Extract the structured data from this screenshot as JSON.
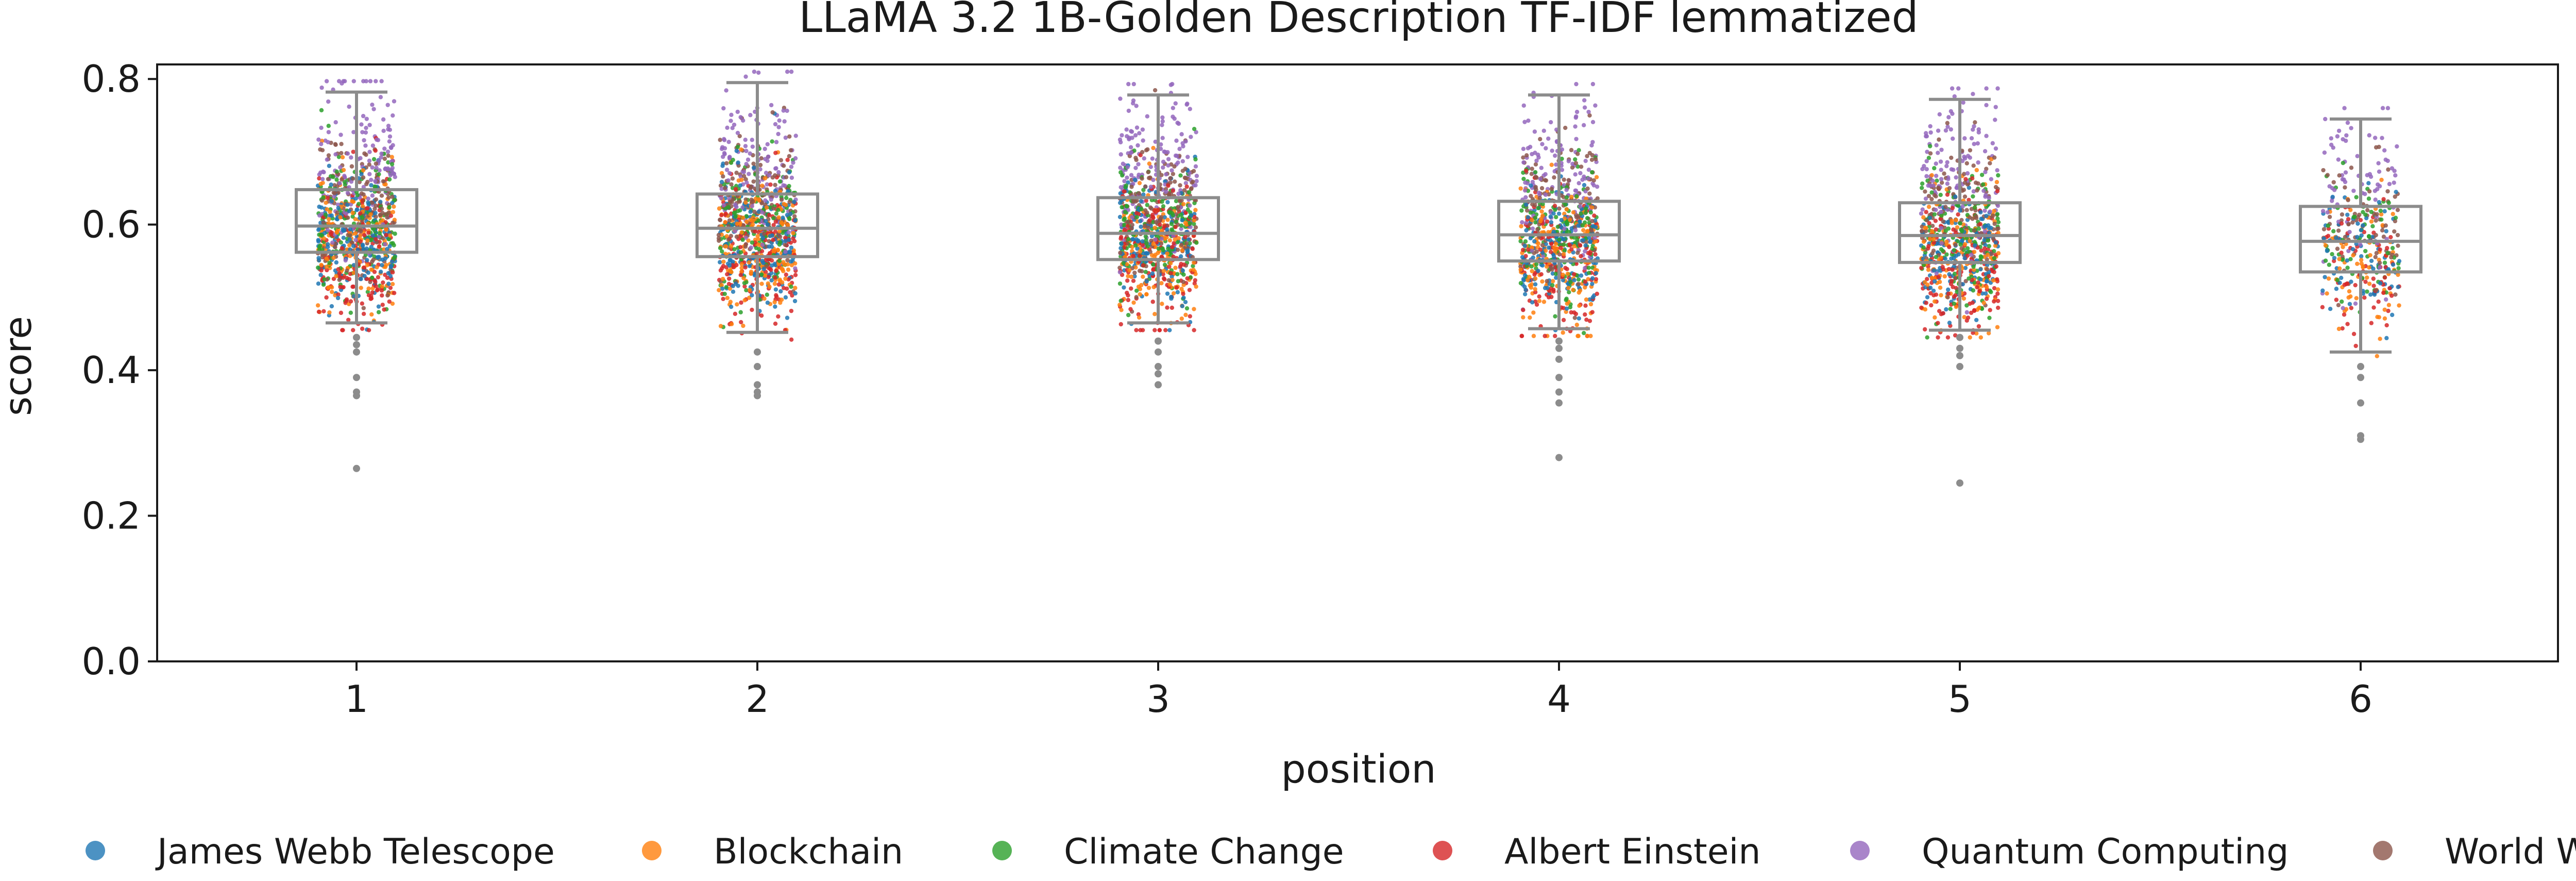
{
  "chart_data": {
    "type": "box-strip",
    "title": "LLaMA 3.2 1B-Golden Description TF-IDF lemmatized",
    "xlabel": "position",
    "ylabel": "score",
    "categories": [
      "1",
      "2",
      "3",
      "4",
      "5",
      "6"
    ],
    "ylim": [
      0.0,
      0.82
    ],
    "yticks": [
      "0.0",
      "0.2",
      "0.4",
      "0.6",
      "0.8"
    ],
    "grid": false,
    "legend_position": "bottom",
    "series": [
      {
        "name": "James Webb Telescope",
        "color": "#1f77b4",
        "center": 0.58,
        "spread": 0.045
      },
      {
        "name": "Blockchain",
        "color": "#ff7f0e",
        "center": 0.57,
        "spread": 0.05
      },
      {
        "name": "Climate Change",
        "color": "#2ca02c",
        "center": 0.6,
        "spread": 0.045
      },
      {
        "name": "Albert Einstein",
        "color": "#d62728",
        "center": 0.56,
        "spread": 0.05
      },
      {
        "name": "Quantum Computing",
        "color": "#9467bd",
        "center": 0.68,
        "spread": 0.06
      },
      {
        "name": "World War II",
        "color": "#8c564b",
        "center": 0.63,
        "spread": 0.05
      }
    ],
    "boxes": [
      {
        "q1": 0.562,
        "median": 0.598,
        "q3": 0.648,
        "whisker_low": 0.465,
        "whisker_high": 0.782,
        "outliers": [
          0.445,
          0.435,
          0.425,
          0.39,
          0.37,
          0.365,
          0.265
        ]
      },
      {
        "q1": 0.556,
        "median": 0.595,
        "q3": 0.642,
        "whisker_low": 0.452,
        "whisker_high": 0.795,
        "outliers": [
          0.425,
          0.405,
          0.38,
          0.37,
          0.365
        ]
      },
      {
        "q1": 0.552,
        "median": 0.588,
        "q3": 0.637,
        "whisker_low": 0.465,
        "whisker_high": 0.778,
        "outliers": [
          0.44,
          0.425,
          0.405,
          0.395,
          0.38
        ]
      },
      {
        "q1": 0.55,
        "median": 0.586,
        "q3": 0.632,
        "whisker_low": 0.457,
        "whisker_high": 0.778,
        "outliers": [
          0.44,
          0.43,
          0.415,
          0.39,
          0.37,
          0.355,
          0.28
        ]
      },
      {
        "q1": 0.548,
        "median": 0.585,
        "q3": 0.63,
        "whisker_low": 0.455,
        "whisker_high": 0.772,
        "outliers": [
          0.445,
          0.43,
          0.42,
          0.405,
          0.245
        ]
      },
      {
        "q1": 0.535,
        "median": 0.577,
        "q3": 0.625,
        "whisker_low": 0.425,
        "whisker_high": 0.745,
        "outliers": [
          0.405,
          0.39,
          0.355,
          0.31,
          0.305
        ]
      }
    ]
  }
}
